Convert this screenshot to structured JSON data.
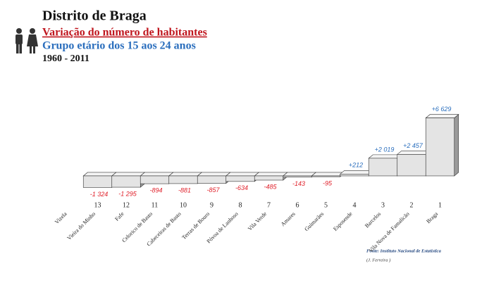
{
  "chart_data": {
    "type": "bar",
    "title": "Distrito de Braga",
    "subtitle": "Variação do número de habitantes",
    "group": "Grupo etário dos 15 aos 24 anos",
    "period": "1960 - 2011",
    "categories": [
      "Vizela",
      "Vieira do Minho",
      "Fafe",
      "Celorico de Basto",
      "Cabeceiras de Basto",
      "Terras de Bouro",
      "Póvoa de Lanhoso",
      "Vila Verde",
      "Amares",
      "Guimarães",
      "Esposende",
      "Barcelos",
      "Vila Nova de Famalicão",
      "Braga"
    ],
    "ranks": [
      null,
      "13",
      "12",
      "11",
      "10",
      "9",
      "8",
      "7",
      "6",
      "5",
      "4",
      "3",
      "2",
      "1"
    ],
    "values": [
      null,
      -1324,
      -1295,
      -894,
      -881,
      -857,
      -634,
      -485,
      -143,
      -95,
      212,
      2019,
      2457,
      6629
    ],
    "value_labels": [
      null,
      "-1 324",
      "-1 295",
      "-894",
      "-881",
      "-857",
      "-634",
      "-485",
      "-143",
      "-95",
      "+212",
      "+2 019",
      "+2 457",
      "+6 629"
    ],
    "ylim": [
      -1500,
      7000
    ],
    "color": "#e4e4e4",
    "negative_label_color": "#e0202a",
    "positive_label_color": "#2a6ebd",
    "source": "Fonte: Instituto Nacional de Estatística",
    "author": "(J. Ferreira )"
  }
}
